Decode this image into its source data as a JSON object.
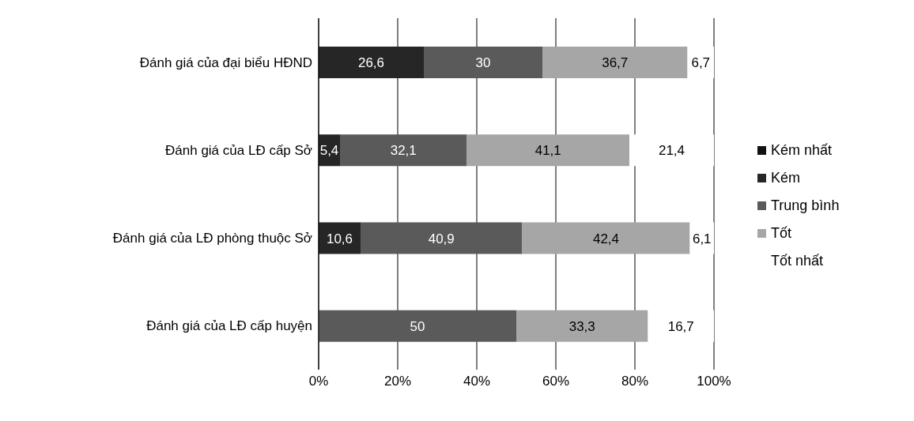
{
  "chart_data": {
    "type": "bar",
    "orientation": "horizontal",
    "stacked": true,
    "categories": [
      "Đánh giá của đại biểu HĐND",
      "Đánh giá của LĐ cấp Sở",
      "Đánh giá của LĐ phòng thuộc Sở",
      "Đánh giá của LĐ cấp huyện"
    ],
    "series": [
      {
        "name": "Kém nhất",
        "color": "#111111",
        "values": [
          null,
          null,
          null,
          null
        ]
      },
      {
        "name": "Kém",
        "color": "#262626",
        "values": [
          26.6,
          5.4,
          10.6,
          null
        ],
        "value_labels": [
          "26,6",
          "5,4",
          "10,6",
          null
        ]
      },
      {
        "name": "Trung bình",
        "color": "#5a5a5a",
        "values": [
          30,
          32.1,
          40.9,
          50
        ],
        "value_labels": [
          "30",
          "32,1",
          "40,9",
          "50"
        ]
      },
      {
        "name": "Tốt",
        "color": "#a6a6a6",
        "values": [
          36.7,
          41.1,
          42.4,
          33.3
        ],
        "value_labels": [
          "36,7",
          "41,1",
          "42,4",
          "33,3"
        ]
      },
      {
        "name": "Tốt nhất",
        "color": "#ffffff",
        "values": [
          6.7,
          21.4,
          6.1,
          16.7
        ],
        "value_labels": [
          "6,7",
          "21,4",
          "6,1",
          "16,7"
        ]
      }
    ],
    "xlim": [
      0,
      100
    ],
    "xticks": [
      {
        "value": 0,
        "label": "0%"
      },
      {
        "value": 20,
        "label": "20%"
      },
      {
        "value": 40,
        "label": "40%"
      },
      {
        "value": 60,
        "label": "60%"
      },
      {
        "value": 80,
        "label": "80%"
      },
      {
        "value": 100,
        "label": "100%"
      }
    ],
    "grid": "x",
    "legend": "right"
  }
}
